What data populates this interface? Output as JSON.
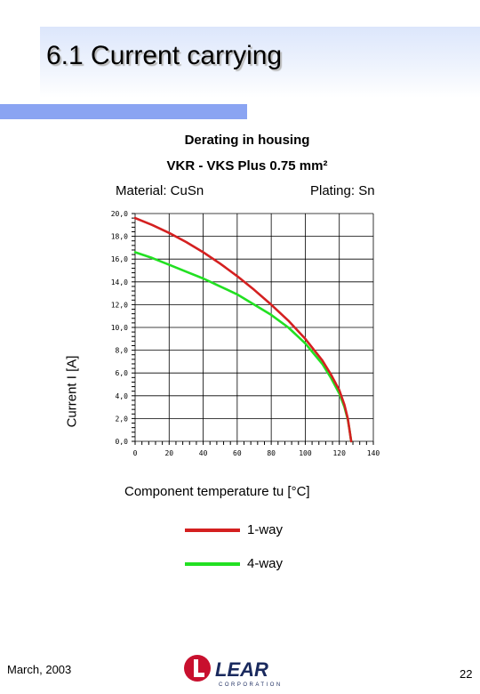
{
  "slide": {
    "title": "6.1 Current carrying",
    "footer_date": "March, 2003",
    "page_number": "22",
    "logo_text": "LEAR",
    "logo_subtext": "CORPORATION",
    "colors": {
      "header_band": "#dce6fb",
      "accent_bar": "#8aa4f2"
    }
  },
  "chart_data": {
    "type": "line",
    "title": "Derating in housing",
    "subtitle": "VKR - VKS  Plus 0.75 mm²",
    "annotations": {
      "material": "Material: CuSn",
      "plating": "Plating: Sn"
    },
    "xlabel": "Component temperature tu [°C]",
    "ylabel": "Current I [A]",
    "xlim": [
      0,
      140
    ],
    "ylim": [
      0,
      20
    ],
    "x_ticks": [
      "0",
      "20",
      "40",
      "60",
      "80",
      "100",
      "120",
      "140"
    ],
    "y_ticks": [
      "0,0",
      "2,0",
      "4,0",
      "6,0",
      "8,0",
      "10,0",
      "12,0",
      "14,0",
      "16,0",
      "18,0",
      "20,0"
    ],
    "grid": true,
    "legend_position": "below",
    "series": [
      {
        "name": "1-way",
        "color": "#d42020",
        "x": [
          0,
          10,
          20,
          30,
          40,
          50,
          60,
          70,
          80,
          90,
          100,
          110,
          115,
          120,
          123,
          125,
          126,
          127
        ],
        "y": [
          19.6,
          19.0,
          18.3,
          17.5,
          16.6,
          15.6,
          14.5,
          13.3,
          12.0,
          10.6,
          9.0,
          7.1,
          5.9,
          4.5,
          3.2,
          2.0,
          1.0,
          0.0
        ]
      },
      {
        "name": "4-way",
        "color": "#22e022",
        "x": [
          0,
          10,
          20,
          30,
          40,
          50,
          60,
          70,
          80,
          90,
          100,
          110,
          115,
          120,
          123,
          125,
          126,
          127
        ],
        "y": [
          16.6,
          16.1,
          15.5,
          14.9,
          14.3,
          13.6,
          12.9,
          12.0,
          11.1,
          10.0,
          8.6,
          6.8,
          5.6,
          4.2,
          3.0,
          1.9,
          1.0,
          0.0
        ]
      }
    ]
  }
}
